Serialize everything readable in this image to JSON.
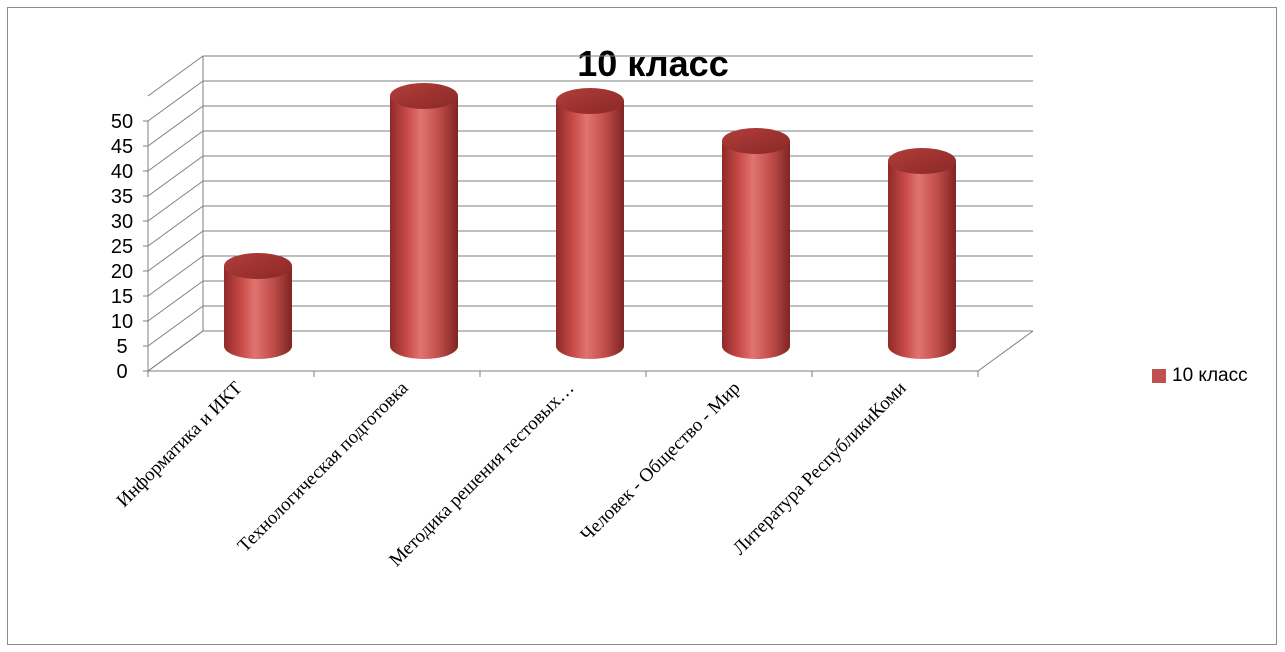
{
  "chart_data": {
    "type": "bar",
    "style": "3d-cylinder",
    "title": "10 класс",
    "categories": [
      "Информатика и ИКТ",
      "Технологическая подготовка",
      "Методика решения тестовых…",
      "Человек - Общество - Мир",
      "Литература РеспубликиКоми"
    ],
    "series": [
      {
        "name": "10 класс",
        "values": [
          16,
          50,
          49,
          41,
          37
        ],
        "color": "#c0504d"
      }
    ],
    "ylim": [
      0,
      50
    ],
    "yticks": [
      0,
      5,
      10,
      15,
      20,
      25,
      30,
      35,
      40,
      45,
      50
    ],
    "grid": true,
    "legend_position": "right"
  }
}
